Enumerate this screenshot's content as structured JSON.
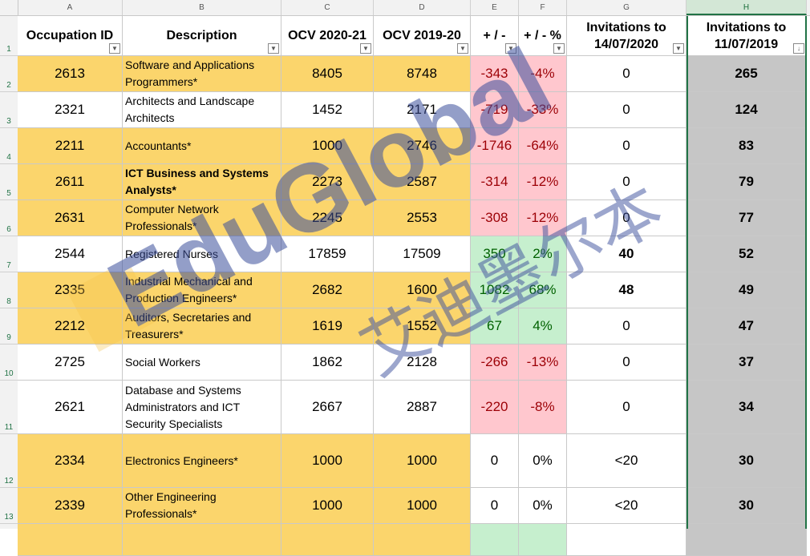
{
  "columns": [
    "A",
    "B",
    "C",
    "D",
    "E",
    "F",
    "G",
    "H"
  ],
  "headers": {
    "occupation_id": "Occupation ID",
    "description": "Description",
    "ocv_2020": "OCV 2020-21",
    "ocv_2019": "OCV 2019-20",
    "diff": "+ / -",
    "diff_pct": "+ / - %",
    "inv_2020_line1": "Invitations to",
    "inv_2020_line2": "14/07/2020",
    "inv_2019_line1": "Invitations to",
    "inv_2019_line2": "11/07/2019"
  },
  "row_numbers": [
    "1",
    "2",
    "3",
    "4",
    "5",
    "6",
    "7",
    "8",
    "9",
    "10",
    "11",
    "12",
    "13"
  ],
  "rows": [
    {
      "id": "2613",
      "desc": [
        "Software and Applications",
        "Programmers*"
      ],
      "bold": false,
      "ocv2020": "8405",
      "ocv2019": "8748",
      "diff": "-343",
      "pct": "-4%",
      "inv2020": "0",
      "inv2019": "265",
      "color": "y",
      "change": "red"
    },
    {
      "id": "2321",
      "desc": [
        "Architects and Landscape",
        "Architects"
      ],
      "bold": false,
      "ocv2020": "1452",
      "ocv2019": "2171",
      "diff": "-719",
      "pct": "-33%",
      "inv2020": "0",
      "inv2019": "124",
      "color": "w",
      "change": "red"
    },
    {
      "id": "2211",
      "desc": [
        "Accountants*"
      ],
      "bold": false,
      "ocv2020": "1000",
      "ocv2019": "2746",
      "diff": "-1746",
      "pct": "-64%",
      "inv2020": "0",
      "inv2019": "83",
      "color": "y",
      "change": "red"
    },
    {
      "id": "2611",
      "desc": [
        "ICT Business and Systems",
        "Analysts*"
      ],
      "bold": true,
      "ocv2020": "2273",
      "ocv2019": "2587",
      "diff": "-314",
      "pct": "-12%",
      "inv2020": "0",
      "inv2019": "79",
      "color": "y",
      "change": "red"
    },
    {
      "id": "2631",
      "desc": [
        "Computer Network",
        "Professionals*"
      ],
      "bold": false,
      "ocv2020": "2245",
      "ocv2019": "2553",
      "diff": "-308",
      "pct": "-12%",
      "inv2020": "0",
      "inv2019": "77",
      "color": "y",
      "change": "red"
    },
    {
      "id": "2544",
      "desc": [
        "Registered Nurses"
      ],
      "bold": false,
      "ocv2020": "17859",
      "ocv2019": "17509",
      "diff": "350",
      "pct": "2%",
      "inv2020": "40",
      "inv2019": "52",
      "color": "w",
      "change": "grn",
      "inv2020_bold": true
    },
    {
      "id": "2335",
      "desc": [
        "Industrial Mechanical and",
        "Production Engineers*"
      ],
      "bold": false,
      "ocv2020": "2682",
      "ocv2019": "1600",
      "diff": "1082",
      "pct": "68%",
      "inv2020": "48",
      "inv2019": "49",
      "color": "y",
      "change": "grn",
      "inv2020_bold": true
    },
    {
      "id": "2212",
      "desc": [
        "Auditors, Secretaries and",
        "Treasurers*"
      ],
      "bold": false,
      "ocv2020": "1619",
      "ocv2019": "1552",
      "diff": "67",
      "pct": "4%",
      "inv2020": "0",
      "inv2019": "47",
      "color": "y",
      "change": "grn"
    },
    {
      "id": "2725",
      "desc": [
        "Social Workers"
      ],
      "bold": false,
      "ocv2020": "1862",
      "ocv2019": "2128",
      "diff": "-266",
      "pct": "-13%",
      "inv2020": "0",
      "inv2019": "37",
      "color": "w",
      "change": "red"
    },
    {
      "id": "2621",
      "desc": [
        "Database and Systems",
        "Administrators and ICT",
        "Security Specialists"
      ],
      "bold": false,
      "ocv2020": "2667",
      "ocv2019": "2887",
      "diff": "-220",
      "pct": "-8%",
      "inv2020": "0",
      "inv2019": "34",
      "color": "w",
      "change": "red"
    },
    {
      "id": "2334",
      "desc": [
        "Electronics Engineers*"
      ],
      "bold": false,
      "ocv2020": "1000",
      "ocv2019": "1000",
      "diff": "0",
      "pct": "0%",
      "inv2020": "<20",
      "inv2019": "30",
      "color": "y",
      "change": "w"
    },
    {
      "id": "2339",
      "desc": [
        "Other Engineering",
        "Professionals*"
      ],
      "bold": false,
      "ocv2020": "1000",
      "ocv2019": "1000",
      "diff": "0",
      "pct": "0%",
      "inv2020": "<20",
      "inv2019": "30",
      "color": "y",
      "change": "w"
    }
  ],
  "watermark": {
    "text_en": "EduGlobal",
    "text_cn": "艾迪墨尔本"
  },
  "colors": {
    "yellow": "#fbd56c",
    "red_fill": "#ffc7ce",
    "red_text": "#9c0006",
    "green_fill": "#c6efce",
    "green_text": "#006100",
    "gray": "#c6c6c6",
    "accent": "#217346"
  }
}
